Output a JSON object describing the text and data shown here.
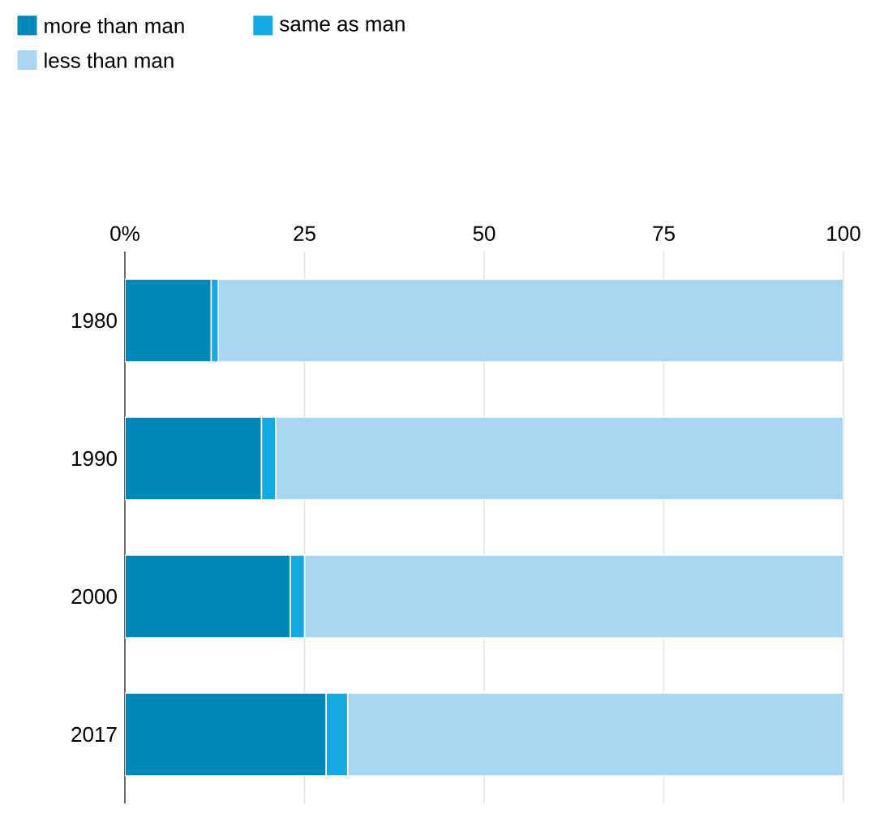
{
  "chart_data": {
    "type": "bar",
    "orientation": "horizontal",
    "stacked": true,
    "categories": [
      "1980",
      "1990",
      "2000",
      "2017"
    ],
    "series": [
      {
        "name": "more than man",
        "color": "#0089b8",
        "values": [
          12,
          19,
          23,
          28
        ]
      },
      {
        "name": "same as man",
        "color": "#14a9e0",
        "values": [
          1,
          2,
          2,
          3
        ]
      },
      {
        "name": "less than man",
        "color": "#a8d6f2",
        "values": [
          87,
          79,
          75,
          69
        ]
      }
    ],
    "xlim": [
      0,
      100
    ],
    "xticks": [
      {
        "value": 0,
        "label": "0%"
      },
      25,
      50,
      75,
      100
    ],
    "grid": "x",
    "legend": "top left"
  }
}
